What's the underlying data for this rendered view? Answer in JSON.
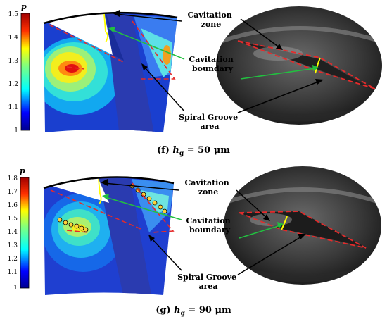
{
  "panels": [
    {
      "colorbar": {
        "label": "p",
        "ticks": [
          "1.5",
          "1.4",
          "1.3",
          "1.2",
          "1.1",
          "1"
        ]
      },
      "annotations": {
        "cavitation_zone": [
          "Cavitation",
          "zone"
        ],
        "cavitation_boundary": [
          "Cavitation",
          "boundary"
        ],
        "spiral_groove_area": [
          "Spiral Groove",
          "area"
        ]
      },
      "caption": {
        "prefix": "(f) ",
        "var": "h",
        "sub": "g",
        "rest": " = 50 μm"
      }
    },
    {
      "colorbar": {
        "label": "p",
        "ticks": [
          "1.8",
          "1.7",
          "1.6",
          "1.5",
          "1.4",
          "1.3",
          "1.2",
          "1.1",
          "1"
        ]
      },
      "annotations": {
        "cavitation_zone": [
          "Cavitation",
          "zone"
        ],
        "cavitation_boundary": [
          "Cavitation",
          "boundary"
        ],
        "spiral_groove_area": [
          "Spiral Groove",
          "area"
        ]
      },
      "caption": {
        "prefix": "(g) ",
        "var": "h",
        "sub": "g",
        "rest": " = 90 μm"
      }
    }
  ]
}
